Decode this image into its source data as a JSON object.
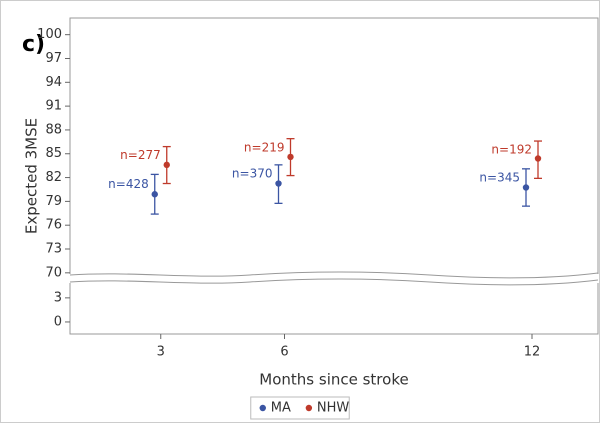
{
  "chart_data": {
    "type": "errorbar",
    "panel_label": "c)",
    "xlabel": "Months since stroke",
    "ylabel": "Expected 3MSE",
    "xlim": [
      0.8,
      13.6
    ],
    "xticks": [
      3,
      6,
      12
    ],
    "y_segments": [
      {
        "ylim": [
          69.6,
          102.1
        ],
        "yticks": [
          70,
          73,
          76,
          79,
          82,
          85,
          88,
          91,
          94,
          97,
          100
        ]
      },
      {
        "ylim": [
          -1.5,
          5.1
        ],
        "yticks": [
          0,
          3
        ]
      }
    ],
    "x": [
      3,
      6,
      12
    ],
    "series": [
      {
        "name": "MA",
        "color": "#3b55a3",
        "values": [
          79.9,
          81.25,
          80.75
        ],
        "lower": [
          77.4,
          78.75,
          78.4
        ],
        "upper": [
          82.4,
          83.6,
          83.1
        ],
        "labels": [
          "n=428",
          "n=370",
          "n=345"
        ]
      },
      {
        "name": "NHW",
        "color": "#bf3a2b",
        "values": [
          83.6,
          84.6,
          84.4
        ],
        "lower": [
          81.25,
          82.25,
          81.9
        ],
        "upper": [
          85.9,
          86.9,
          86.6
        ],
        "labels": [
          "n=277",
          "n=219",
          "n=192"
        ]
      }
    ],
    "legend": "bottom"
  }
}
